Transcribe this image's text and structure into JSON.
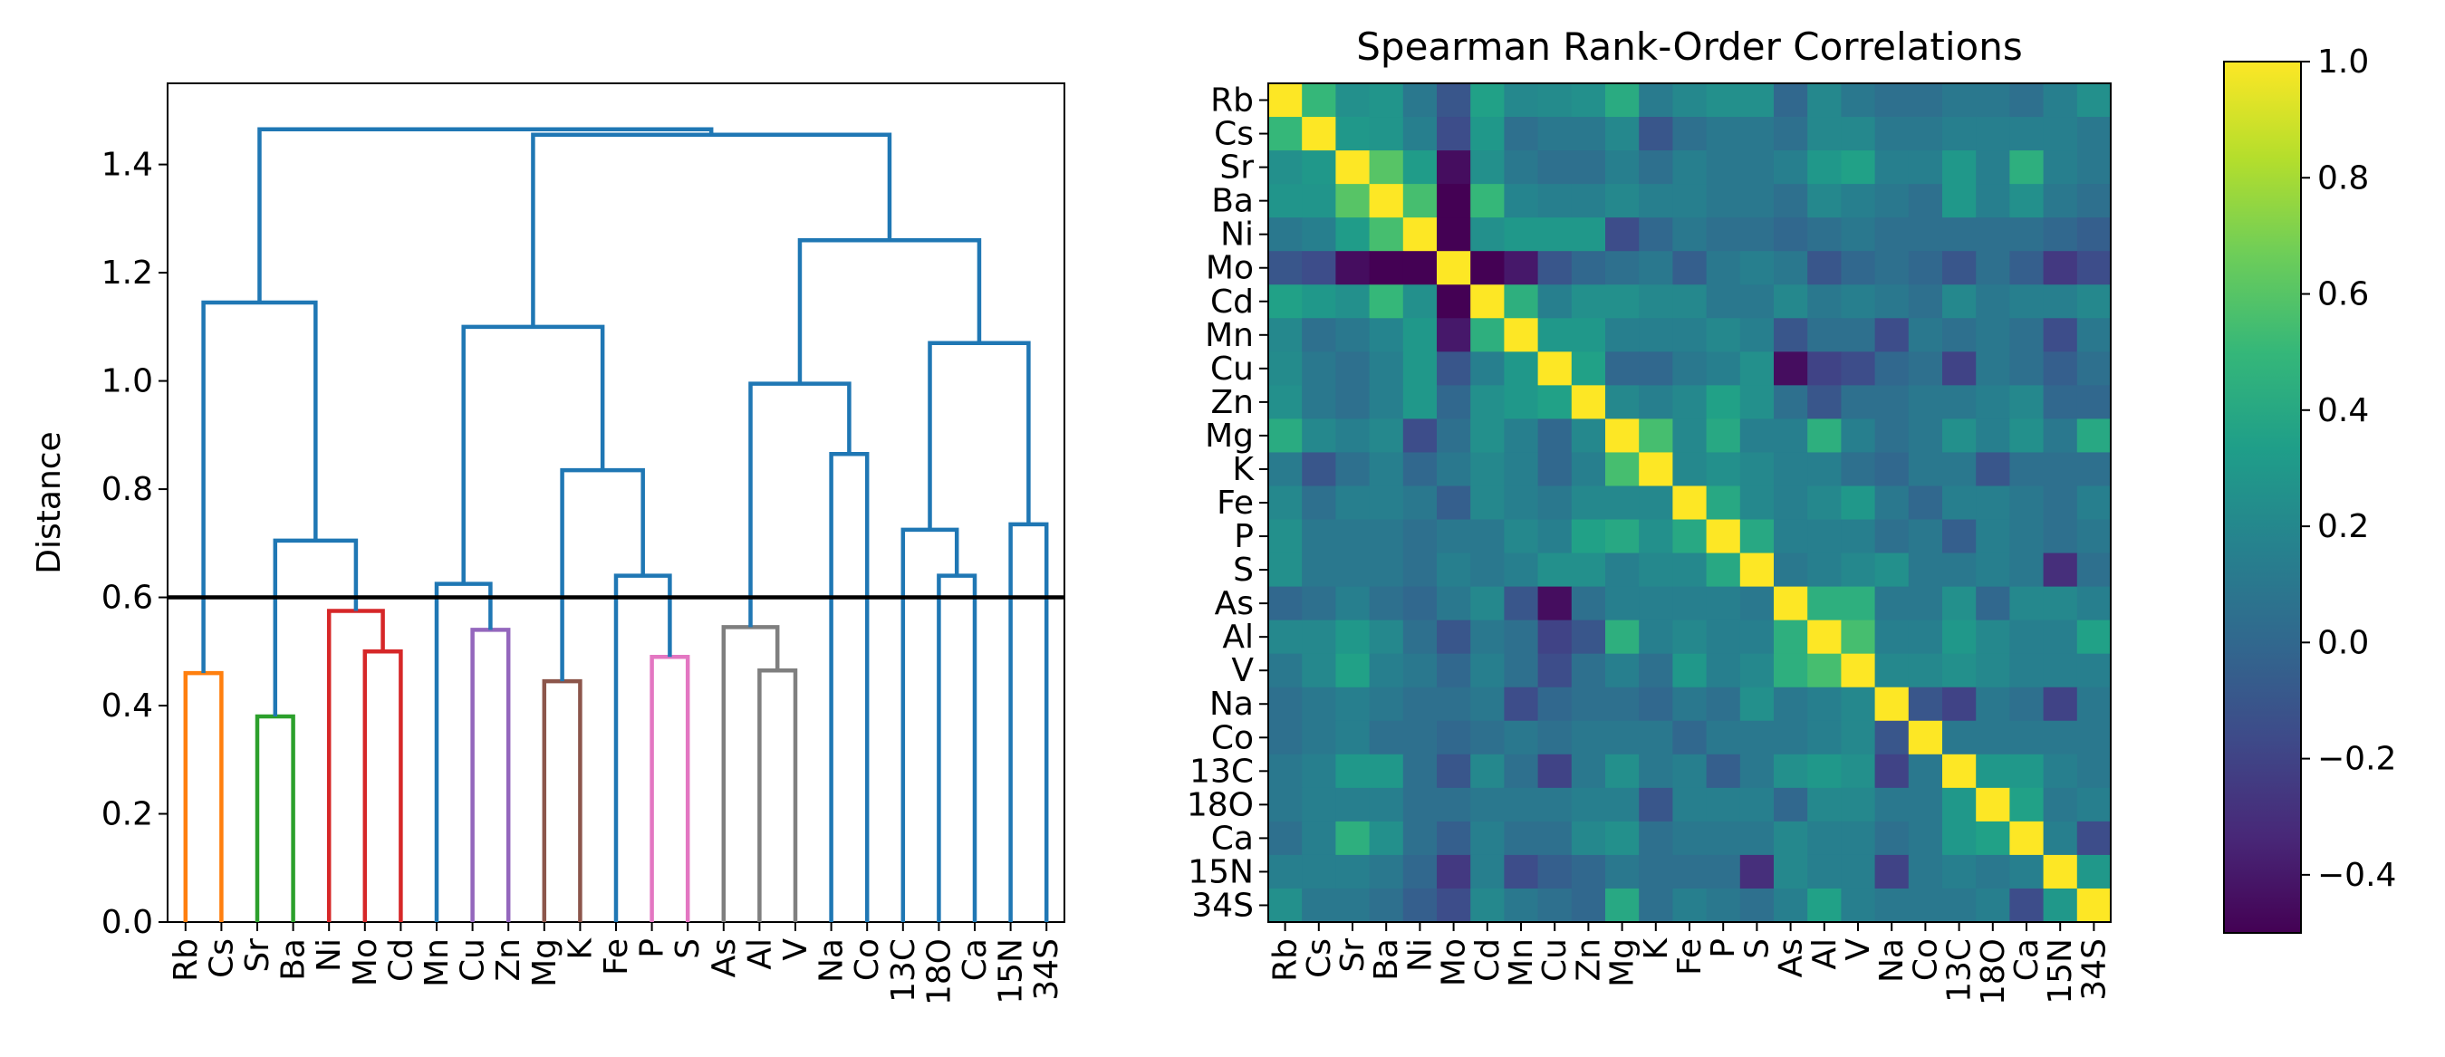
{
  "chart_data": [
    {
      "type": "dendrogram",
      "ylabel": "Distance",
      "ylim": [
        0,
        1.55
      ],
      "yticks": [
        "0.0",
        "0.2",
        "0.4",
        "0.6",
        "0.8",
        "1.0",
        "1.2",
        "1.4"
      ],
      "threshold": 0.6,
      "leaves": [
        "Rb",
        "Cs",
        "Sr",
        "Ba",
        "Ni",
        "Mo",
        "Cd",
        "Mn",
        "Cu",
        "Zn",
        "Mg",
        "K",
        "Fe",
        "P",
        "S",
        "As",
        "Al",
        "V",
        "Na",
        "Co",
        "13C",
        "18O",
        "Ca",
        "15N",
        "34S"
      ],
      "links": [
        {
          "l": [
            0,
            0
          ],
          "r": [
            1,
            0
          ],
          "h": 0.46,
          "color": "#ff7f0e"
        },
        {
          "l": [
            2,
            0
          ],
          "r": [
            3,
            0
          ],
          "h": 0.38,
          "color": "#2ca02c"
        },
        {
          "l": [
            5,
            0
          ],
          "r": [
            6,
            0
          ],
          "h": 0.5,
          "color": "#d62728"
        },
        {
          "l": [
            4,
            0
          ],
          "r": [
            5.5,
            0.5
          ],
          "h": 0.575,
          "color": "#d62728"
        },
        {
          "l": [
            8,
            0
          ],
          "r": [
            9,
            0
          ],
          "h": 0.54,
          "color": "#9467bd"
        },
        {
          "l": [
            10,
            0
          ],
          "r": [
            11,
            0
          ],
          "h": 0.445,
          "color": "#8c564b"
        },
        {
          "l": [
            13,
            0
          ],
          "r": [
            14,
            0
          ],
          "h": 0.49,
          "color": "#e377c2"
        },
        {
          "l": [
            16,
            0
          ],
          "r": [
            17,
            0
          ],
          "h": 0.465,
          "color": "#7f7f7f"
        },
        {
          "l": [
            15,
            0
          ],
          "r": [
            16.5,
            0.465
          ],
          "h": 0.545,
          "color": "#7f7f7f"
        },
        {
          "l": [
            2.5,
            0.38
          ],
          "r": [
            4.75,
            0.575
          ],
          "h": 0.705,
          "color": "#1f77b4"
        },
        {
          "l": [
            0.5,
            0.46
          ],
          "r": [
            3.625,
            0.705
          ],
          "h": 1.145,
          "color": "#1f77b4"
        },
        {
          "l": [
            7,
            0
          ],
          "r": [
            8.5,
            0.54
          ],
          "h": 0.625,
          "color": "#1f77b4"
        },
        {
          "l": [
            12,
            0
          ],
          "r": [
            13.5,
            0.49
          ],
          "h": 0.64,
          "color": "#1f77b4"
        },
        {
          "l": [
            10.5,
            0.445
          ],
          "r": [
            12.75,
            0.64
          ],
          "h": 0.835,
          "color": "#1f77b4"
        },
        {
          "l": [
            7.75,
            0.625
          ],
          "r": [
            11.625,
            0.835
          ],
          "h": 1.1,
          "color": "#1f77b4"
        },
        {
          "l": [
            18,
            0
          ],
          "r": [
            19,
            0
          ],
          "h": 0.865,
          "color": "#1f77b4"
        },
        {
          "l": [
            15.75,
            0.545
          ],
          "r": [
            18.5,
            0.865
          ],
          "h": 0.995,
          "color": "#1f77b4"
        },
        {
          "l": [
            21,
            0
          ],
          "r": [
            22,
            0
          ],
          "h": 0.64,
          "color": "#1f77b4"
        },
        {
          "l": [
            20,
            0
          ],
          "r": [
            21.5,
            0.64
          ],
          "h": 0.725,
          "color": "#1f77b4"
        },
        {
          "l": [
            23,
            0
          ],
          "r": [
            24,
            0
          ],
          "h": 0.735,
          "color": "#1f77b4"
        },
        {
          "l": [
            20.75,
            0.725
          ],
          "r": [
            23.5,
            0.735
          ],
          "h": 1.07,
          "color": "#1f77b4"
        },
        {
          "l": [
            17.125,
            0.995
          ],
          "r": [
            22.125,
            1.07
          ],
          "h": 1.26,
          "color": "#1f77b4"
        },
        {
          "l": [
            9.6875,
            1.1
          ],
          "r": [
            19.625,
            1.26
          ],
          "h": 1.455,
          "color": "#1f77b4"
        },
        {
          "l": [
            2.0625,
            1.145
          ],
          "r": [
            14.65625,
            1.455
          ],
          "h": 1.465,
          "color": "#1f77b4"
        }
      ]
    },
    {
      "type": "heatmap",
      "title": "Spearman Rank-Order Correlations",
      "labels": [
        "Rb",
        "Cs",
        "Sr",
        "Ba",
        "Ni",
        "Mo",
        "Cd",
        "Mn",
        "Cu",
        "Zn",
        "Mg",
        "K",
        "Fe",
        "P",
        "S",
        "As",
        "Al",
        "V",
        "Na",
        "Co",
        "13C",
        "18O",
        "Ca",
        "15N",
        "34S"
      ],
      "colormap": "viridis",
      "vmin": -0.5,
      "vmax": 1.0,
      "colorbar_ticks": [
        "1.0",
        "0.8",
        "0.6",
        "0.4",
        "0.2",
        "0.0",
        "−0.2",
        "−0.4"
      ],
      "colorbar_tick_values": [
        1.0,
        0.8,
        0.6,
        0.4,
        0.2,
        0.0,
        -0.2,
        -0.4
      ],
      "values": [
        [
          1.0,
          0.5,
          0.25,
          0.28,
          0.1,
          -0.1,
          0.35,
          0.2,
          0.22,
          0.25,
          0.42,
          0.12,
          0.2,
          0.25,
          0.25,
          0.0,
          0.2,
          0.1,
          0.05,
          0.05,
          0.1,
          0.1,
          0.05,
          0.15,
          0.25
        ],
        [
          0.5,
          1.0,
          0.3,
          0.28,
          0.15,
          -0.15,
          0.3,
          0.05,
          0.1,
          0.1,
          0.2,
          -0.1,
          0.05,
          0.1,
          0.1,
          0.05,
          0.2,
          0.2,
          0.1,
          0.1,
          0.15,
          0.15,
          0.15,
          0.15,
          0.1
        ],
        [
          0.25,
          0.3,
          1.0,
          0.6,
          0.32,
          -0.45,
          0.25,
          0.1,
          0.05,
          0.05,
          0.15,
          0.05,
          0.15,
          0.1,
          0.1,
          0.15,
          0.3,
          0.35,
          0.15,
          0.15,
          0.3,
          0.15,
          0.45,
          0.15,
          0.1
        ],
        [
          0.28,
          0.28,
          0.6,
          1.0,
          0.55,
          -0.5,
          0.5,
          0.18,
          0.15,
          0.15,
          0.2,
          0.15,
          0.15,
          0.1,
          0.1,
          0.05,
          0.2,
          0.15,
          0.1,
          0.05,
          0.3,
          0.15,
          0.25,
          0.1,
          0.05
        ],
        [
          0.1,
          0.15,
          0.32,
          0.55,
          1.0,
          -0.5,
          0.25,
          0.3,
          0.3,
          0.3,
          -0.15,
          0.0,
          0.1,
          0.05,
          0.05,
          0.0,
          0.05,
          0.1,
          0.05,
          0.05,
          0.05,
          0.05,
          0.05,
          0.0,
          -0.05
        ],
        [
          -0.1,
          -0.15,
          -0.45,
          -0.5,
          -0.5,
          1.0,
          -0.5,
          -0.4,
          -0.1,
          0.0,
          0.05,
          0.1,
          -0.05,
          0.1,
          0.15,
          0.1,
          -0.1,
          0.0,
          0.05,
          0.0,
          -0.1,
          0.05,
          -0.05,
          -0.25,
          -0.15
        ],
        [
          0.35,
          0.3,
          0.25,
          0.5,
          0.25,
          -0.5,
          1.0,
          0.45,
          0.15,
          0.25,
          0.25,
          0.2,
          0.2,
          0.1,
          0.1,
          0.2,
          0.1,
          0.15,
          0.1,
          0.05,
          0.2,
          0.1,
          0.15,
          0.15,
          0.2
        ],
        [
          0.2,
          0.05,
          0.1,
          0.18,
          0.3,
          -0.4,
          0.45,
          1.0,
          0.3,
          0.3,
          0.15,
          0.15,
          0.15,
          0.2,
          0.15,
          -0.1,
          0.05,
          0.05,
          -0.15,
          0.1,
          0.05,
          0.1,
          0.05,
          -0.15,
          0.1
        ],
        [
          0.22,
          0.1,
          0.05,
          0.15,
          0.3,
          -0.1,
          0.15,
          0.3,
          1.0,
          0.35,
          0.0,
          0.0,
          0.1,
          0.15,
          0.25,
          -0.45,
          -0.2,
          -0.15,
          0.0,
          0.05,
          -0.2,
          0.1,
          0.05,
          -0.05,
          0.05
        ],
        [
          0.25,
          0.1,
          0.05,
          0.15,
          0.3,
          0.0,
          0.25,
          0.3,
          0.35,
          1.0,
          0.2,
          0.15,
          0.2,
          0.35,
          0.25,
          0.05,
          -0.1,
          0.05,
          0.05,
          0.1,
          0.1,
          0.15,
          0.2,
          0.0,
          0.0
        ],
        [
          0.42,
          0.2,
          0.15,
          0.2,
          -0.15,
          0.05,
          0.25,
          0.15,
          0.0,
          0.2,
          1.0,
          0.55,
          0.2,
          0.4,
          0.15,
          0.15,
          0.45,
          0.15,
          0.05,
          0.1,
          0.25,
          0.15,
          0.25,
          0.1,
          0.4
        ],
        [
          0.12,
          -0.1,
          0.05,
          0.15,
          0.0,
          0.1,
          0.2,
          0.15,
          0.0,
          0.15,
          0.55,
          1.0,
          0.2,
          0.25,
          0.2,
          0.15,
          0.15,
          0.05,
          0.0,
          0.1,
          0.1,
          -0.1,
          0.05,
          0.05,
          0.05
        ],
        [
          0.2,
          0.05,
          0.15,
          0.15,
          0.1,
          -0.05,
          0.2,
          0.15,
          0.1,
          0.2,
          0.2,
          0.2,
          1.0,
          0.4,
          0.2,
          0.15,
          0.2,
          0.3,
          0.1,
          0.0,
          0.15,
          0.15,
          0.1,
          0.05,
          0.15
        ],
        [
          0.25,
          0.1,
          0.1,
          0.1,
          0.05,
          0.1,
          0.1,
          0.2,
          0.15,
          0.35,
          0.4,
          0.25,
          0.4,
          1.0,
          0.4,
          0.15,
          0.15,
          0.15,
          0.05,
          0.1,
          -0.05,
          0.15,
          0.1,
          0.05,
          0.1
        ],
        [
          0.25,
          0.1,
          0.1,
          0.1,
          0.05,
          0.15,
          0.1,
          0.15,
          0.25,
          0.25,
          0.15,
          0.2,
          0.2,
          0.4,
          1.0,
          0.1,
          0.15,
          0.2,
          0.25,
          0.1,
          0.1,
          0.15,
          0.1,
          -0.3,
          0.05
        ],
        [
          0.0,
          0.05,
          0.15,
          0.05,
          0.0,
          0.1,
          0.2,
          -0.1,
          -0.45,
          0.05,
          0.15,
          0.15,
          0.15,
          0.15,
          0.1,
          1.0,
          0.45,
          0.45,
          0.1,
          0.1,
          0.25,
          0.0,
          0.2,
          0.2,
          0.15
        ],
        [
          0.2,
          0.2,
          0.3,
          0.2,
          0.05,
          -0.1,
          0.1,
          0.05,
          -0.2,
          -0.1,
          0.45,
          0.15,
          0.2,
          0.15,
          0.15,
          0.45,
          1.0,
          0.55,
          0.15,
          0.15,
          0.3,
          0.2,
          0.15,
          0.15,
          0.35
        ],
        [
          0.1,
          0.2,
          0.35,
          0.15,
          0.1,
          0.0,
          0.15,
          0.05,
          -0.15,
          0.05,
          0.15,
          0.05,
          0.3,
          0.15,
          0.2,
          0.45,
          0.55,
          1.0,
          0.2,
          0.2,
          0.25,
          0.2,
          0.15,
          0.15,
          0.15
        ],
        [
          0.05,
          0.1,
          0.15,
          0.1,
          0.05,
          0.05,
          0.1,
          -0.15,
          0.0,
          0.05,
          0.05,
          0.0,
          0.1,
          0.05,
          0.25,
          0.1,
          0.15,
          0.2,
          1.0,
          -0.1,
          -0.2,
          0.1,
          0.05,
          -0.2,
          0.1
        ],
        [
          0.05,
          0.1,
          0.15,
          0.05,
          0.05,
          0.0,
          0.05,
          0.1,
          0.05,
          0.1,
          0.1,
          0.1,
          0.0,
          0.1,
          0.1,
          0.1,
          0.15,
          0.2,
          -0.1,
          1.0,
          0.1,
          0.1,
          0.1,
          0.1,
          0.1
        ],
        [
          0.1,
          0.15,
          0.3,
          0.3,
          0.05,
          -0.1,
          0.2,
          0.05,
          -0.2,
          0.1,
          0.25,
          0.1,
          0.15,
          -0.05,
          0.1,
          0.25,
          0.3,
          0.25,
          -0.2,
          0.1,
          1.0,
          0.3,
          0.3,
          0.15,
          0.1
        ],
        [
          0.1,
          0.15,
          0.15,
          0.15,
          0.05,
          0.05,
          0.1,
          0.1,
          0.1,
          0.15,
          0.15,
          -0.1,
          0.15,
          0.15,
          0.15,
          0.0,
          0.2,
          0.2,
          0.1,
          0.1,
          0.3,
          1.0,
          0.35,
          0.1,
          0.15
        ],
        [
          0.05,
          0.15,
          0.45,
          0.25,
          0.05,
          -0.05,
          0.15,
          0.05,
          0.05,
          0.2,
          0.25,
          0.05,
          0.1,
          0.1,
          0.1,
          0.2,
          0.15,
          0.15,
          0.05,
          0.1,
          0.3,
          0.35,
          1.0,
          0.15,
          -0.15
        ],
        [
          0.15,
          0.15,
          0.15,
          0.1,
          0.0,
          -0.25,
          0.15,
          -0.15,
          -0.05,
          0.0,
          0.1,
          0.05,
          0.05,
          0.05,
          -0.3,
          0.2,
          0.15,
          0.15,
          -0.2,
          0.1,
          0.15,
          0.1,
          0.15,
          1.0,
          0.3
        ],
        [
          0.25,
          0.1,
          0.1,
          0.05,
          -0.05,
          -0.15,
          0.2,
          0.1,
          0.05,
          0.0,
          0.4,
          0.05,
          0.15,
          0.1,
          0.05,
          0.15,
          0.35,
          0.15,
          0.1,
          0.1,
          0.1,
          0.15,
          -0.15,
          0.3,
          1.0
        ]
      ]
    }
  ]
}
